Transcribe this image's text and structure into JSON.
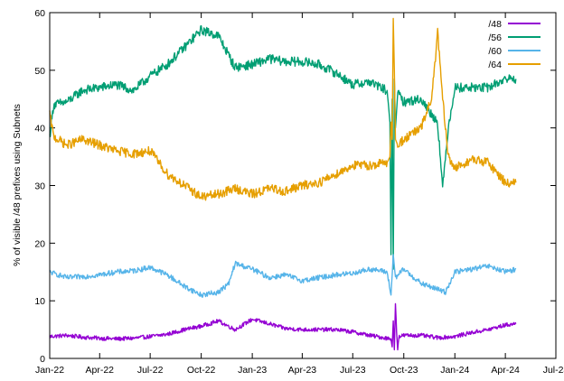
{
  "chart_data": {
    "type": "line",
    "title": "",
    "xlabel": "",
    "ylabel": "% of visible /48 prefixes using Subnets",
    "ylim": [
      0,
      60
    ],
    "y_ticks": [
      "0",
      "10",
      "20",
      "30",
      "40",
      "50",
      "60"
    ],
    "xlim": [
      "2022-01-01",
      "2024-07-01"
    ],
    "x_ticks": [
      {
        "date": "2022-01-01",
        "label": "Jan-22"
      },
      {
        "date": "2022-04-01",
        "label": "Apr-22"
      },
      {
        "date": "2022-07-01",
        "label": "Jul-22"
      },
      {
        "date": "2022-10-01",
        "label": "Oct-22"
      },
      {
        "date": "2023-01-01",
        "label": "Jan-23"
      },
      {
        "date": "2023-04-01",
        "label": "Apr-23"
      },
      {
        "date": "2023-07-01",
        "label": "Jul-23"
      },
      {
        "date": "2023-10-01",
        "label": "Oct-23"
      },
      {
        "date": "2024-01-01",
        "label": "Jan-24"
      },
      {
        "date": "2024-04-01",
        "label": "Apr-24"
      },
      {
        "date": "2024-07-01",
        "label": "Jul-24"
      }
    ],
    "grid": false,
    "legend_position": "top-right",
    "series": [
      {
        "name": "/48",
        "color": "#9400d3",
        "points": [
          [
            "2022-01-01",
            3.8
          ],
          [
            "2022-02-01",
            4.0
          ],
          [
            "2022-03-01",
            3.7
          ],
          [
            "2022-04-01",
            3.5
          ],
          [
            "2022-05-01",
            3.4
          ],
          [
            "2022-06-01",
            3.5
          ],
          [
            "2022-07-01",
            3.8
          ],
          [
            "2022-08-01",
            4.2
          ],
          [
            "2022-09-01",
            5.0
          ],
          [
            "2022-10-01",
            5.6
          ],
          [
            "2022-11-01",
            6.5
          ],
          [
            "2022-12-01",
            5.0
          ],
          [
            "2023-01-01",
            6.8
          ],
          [
            "2023-02-01",
            6.0
          ],
          [
            "2023-03-01",
            5.2
          ],
          [
            "2023-04-01",
            5.0
          ],
          [
            "2023-05-01",
            5.0
          ],
          [
            "2023-06-01",
            5.0
          ],
          [
            "2023-07-01",
            4.6
          ],
          [
            "2023-08-01",
            4.0
          ],
          [
            "2023-09-01",
            3.5
          ],
          [
            "2023-09-08",
            3.4
          ],
          [
            "2023-09-10",
            2.0
          ],
          [
            "2023-09-12",
            6.5
          ],
          [
            "2023-09-14",
            1.5
          ],
          [
            "2023-09-16",
            9.5
          ],
          [
            "2023-09-18",
            4.5
          ],
          [
            "2023-09-20",
            1.5
          ],
          [
            "2023-09-22",
            3.8
          ],
          [
            "2023-10-01",
            4.0
          ],
          [
            "2023-11-01",
            4.0
          ],
          [
            "2023-12-01",
            3.6
          ],
          [
            "2024-01-01",
            3.8
          ],
          [
            "2024-02-01",
            4.5
          ],
          [
            "2024-03-01",
            5.0
          ],
          [
            "2024-04-01",
            5.8
          ],
          [
            "2024-04-20",
            6.0
          ]
        ]
      },
      {
        "name": "/56",
        "color": "#009e73",
        "points": [
          [
            "2022-01-01",
            38.5
          ],
          [
            "2022-01-08",
            44.0
          ],
          [
            "2022-02-01",
            44.5
          ],
          [
            "2022-03-01",
            46.5
          ],
          [
            "2022-04-01",
            47.0
          ],
          [
            "2022-05-01",
            47.5
          ],
          [
            "2022-06-01",
            46.5
          ],
          [
            "2022-07-01",
            49.0
          ],
          [
            "2022-08-01",
            51.0
          ],
          [
            "2022-09-01",
            54.0
          ],
          [
            "2022-10-01",
            57.0
          ],
          [
            "2022-11-01",
            56.0
          ],
          [
            "2022-12-01",
            50.5
          ],
          [
            "2023-01-01",
            51.0
          ],
          [
            "2023-02-01",
            52.0
          ],
          [
            "2023-03-01",
            51.5
          ],
          [
            "2023-04-01",
            51.5
          ],
          [
            "2023-05-01",
            51.0
          ],
          [
            "2023-06-01",
            49.5
          ],
          [
            "2023-07-01",
            47.5
          ],
          [
            "2023-08-01",
            48.0
          ],
          [
            "2023-08-20",
            47.0
          ],
          [
            "2023-09-01",
            46.5
          ],
          [
            "2023-09-06",
            41.0
          ],
          [
            "2023-09-08",
            18.0
          ],
          [
            "2023-09-10",
            45.0
          ],
          [
            "2023-09-12",
            15.5
          ],
          [
            "2023-09-14",
            48.5
          ],
          [
            "2023-09-16",
            40.0
          ],
          [
            "2023-09-20",
            46.0
          ],
          [
            "2023-10-01",
            44.5
          ],
          [
            "2023-11-01",
            45.0
          ],
          [
            "2023-11-15",
            43.0
          ],
          [
            "2023-12-01",
            41.0
          ],
          [
            "2023-12-10",
            29.5
          ],
          [
            "2023-12-20",
            40.0
          ],
          [
            "2024-01-01",
            47.0
          ],
          [
            "2024-02-01",
            47.0
          ],
          [
            "2024-03-01",
            47.0
          ],
          [
            "2024-04-01",
            48.5
          ],
          [
            "2024-04-20",
            48.5
          ]
        ]
      },
      {
        "name": "/60",
        "color": "#56b4e9",
        "points": [
          [
            "2022-01-01",
            15.0
          ],
          [
            "2022-02-01",
            14.0
          ],
          [
            "2022-03-01",
            14.2
          ],
          [
            "2022-04-01",
            14.5
          ],
          [
            "2022-05-01",
            15.0
          ],
          [
            "2022-06-01",
            15.2
          ],
          [
            "2022-07-01",
            15.8
          ],
          [
            "2022-08-01",
            14.5
          ],
          [
            "2022-09-01",
            12.5
          ],
          [
            "2022-10-01",
            11.0
          ],
          [
            "2022-11-01",
            11.5
          ],
          [
            "2022-11-20",
            13.0
          ],
          [
            "2022-12-01",
            16.5
          ],
          [
            "2023-01-01",
            15.5
          ],
          [
            "2023-02-01",
            14.0
          ],
          [
            "2023-03-01",
            14.5
          ],
          [
            "2023-04-01",
            13.5
          ],
          [
            "2023-05-01",
            14.0
          ],
          [
            "2023-06-01",
            14.5
          ],
          [
            "2023-07-01",
            14.8
          ],
          [
            "2023-08-01",
            15.5
          ],
          [
            "2023-09-01",
            15.0
          ],
          [
            "2023-09-08",
            11.0
          ],
          [
            "2023-09-12",
            18.0
          ],
          [
            "2023-09-16",
            14.0
          ],
          [
            "2023-10-01",
            15.5
          ],
          [
            "2023-11-01",
            13.0
          ],
          [
            "2023-12-01",
            12.0
          ],
          [
            "2023-12-15",
            11.5
          ],
          [
            "2024-01-01",
            15.0
          ],
          [
            "2024-02-01",
            15.5
          ],
          [
            "2024-03-01",
            16.0
          ],
          [
            "2024-04-01",
            15.0
          ],
          [
            "2024-04-20",
            15.5
          ]
        ]
      },
      {
        "name": "/64",
        "color": "#e69f00",
        "points": [
          [
            "2022-01-01",
            42.5
          ],
          [
            "2022-01-08",
            38.5
          ],
          [
            "2022-02-01",
            37.0
          ],
          [
            "2022-03-01",
            38.0
          ],
          [
            "2022-04-01",
            37.0
          ],
          [
            "2022-05-01",
            36.0
          ],
          [
            "2022-06-01",
            35.5
          ],
          [
            "2022-07-01",
            36.0
          ],
          [
            "2022-08-01",
            32.0
          ],
          [
            "2022-09-01",
            30.0
          ],
          [
            "2022-10-01",
            28.0
          ],
          [
            "2022-11-01",
            28.5
          ],
          [
            "2022-12-01",
            29.5
          ],
          [
            "2023-01-01",
            28.5
          ],
          [
            "2023-02-01",
            29.5
          ],
          [
            "2023-03-01",
            29.0
          ],
          [
            "2023-04-01",
            30.0
          ],
          [
            "2023-05-01",
            30.5
          ],
          [
            "2023-06-01",
            32.0
          ],
          [
            "2023-07-01",
            33.5
          ],
          [
            "2023-08-01",
            33.5
          ],
          [
            "2023-09-01",
            34.0
          ],
          [
            "2023-09-06",
            35.0
          ],
          [
            "2023-09-08",
            41.0
          ],
          [
            "2023-09-10",
            38.0
          ],
          [
            "2023-09-12",
            59.0
          ],
          [
            "2023-09-14",
            50.0
          ],
          [
            "2023-09-16",
            38.0
          ],
          [
            "2023-09-20",
            37.0
          ],
          [
            "2023-10-01",
            38.0
          ],
          [
            "2023-11-01",
            40.0
          ],
          [
            "2023-11-20",
            45.0
          ],
          [
            "2023-12-01",
            56.5
          ],
          [
            "2023-12-10",
            45.0
          ],
          [
            "2023-12-20",
            35.0
          ],
          [
            "2024-01-01",
            33.0
          ],
          [
            "2024-02-01",
            34.5
          ],
          [
            "2024-03-01",
            34.0
          ],
          [
            "2024-04-01",
            30.5
          ],
          [
            "2024-04-20",
            30.5
          ]
        ]
      }
    ]
  }
}
